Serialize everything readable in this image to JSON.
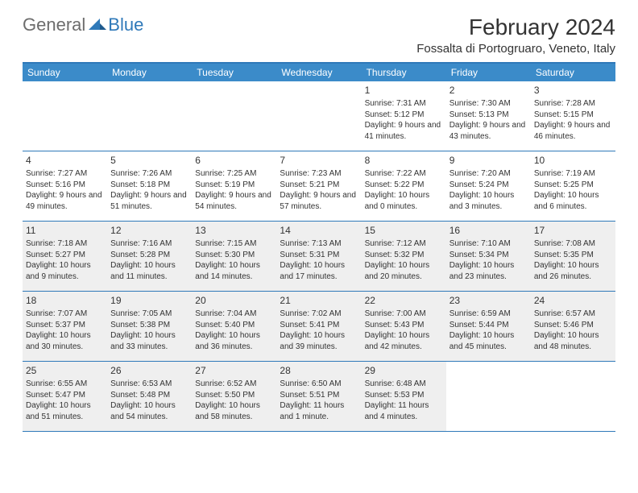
{
  "logo": {
    "general": "General",
    "blue": "Blue"
  },
  "title": "February 2024",
  "location": "Fossalta di Portogruaro, Veneto, Italy",
  "colors": {
    "header_bg": "#3b8bc9",
    "border": "#2f79b9",
    "shaded_bg": "#efefef",
    "text": "#333333",
    "logo_gray": "#6d6d6d",
    "logo_blue": "#2f79b9"
  },
  "day_names": [
    "Sunday",
    "Monday",
    "Tuesday",
    "Wednesday",
    "Thursday",
    "Friday",
    "Saturday"
  ],
  "weeks": [
    [
      {
        "day": "",
        "shaded": false,
        "lines": []
      },
      {
        "day": "",
        "shaded": false,
        "lines": []
      },
      {
        "day": "",
        "shaded": false,
        "lines": []
      },
      {
        "day": "",
        "shaded": false,
        "lines": []
      },
      {
        "day": "1",
        "shaded": false,
        "lines": [
          "Sunrise: 7:31 AM",
          "Sunset: 5:12 PM",
          "Daylight: 9 hours and 41 minutes."
        ]
      },
      {
        "day": "2",
        "shaded": false,
        "lines": [
          "Sunrise: 7:30 AM",
          "Sunset: 5:13 PM",
          "Daylight: 9 hours and 43 minutes."
        ]
      },
      {
        "day": "3",
        "shaded": false,
        "lines": [
          "Sunrise: 7:28 AM",
          "Sunset: 5:15 PM",
          "Daylight: 9 hours and 46 minutes."
        ]
      }
    ],
    [
      {
        "day": "4",
        "shaded": false,
        "lines": [
          "Sunrise: 7:27 AM",
          "Sunset: 5:16 PM",
          "Daylight: 9 hours and 49 minutes."
        ]
      },
      {
        "day": "5",
        "shaded": false,
        "lines": [
          "Sunrise: 7:26 AM",
          "Sunset: 5:18 PM",
          "Daylight: 9 hours and 51 minutes."
        ]
      },
      {
        "day": "6",
        "shaded": false,
        "lines": [
          "Sunrise: 7:25 AM",
          "Sunset: 5:19 PM",
          "Daylight: 9 hours and 54 minutes."
        ]
      },
      {
        "day": "7",
        "shaded": false,
        "lines": [
          "Sunrise: 7:23 AM",
          "Sunset: 5:21 PM",
          "Daylight: 9 hours and 57 minutes."
        ]
      },
      {
        "day": "8",
        "shaded": false,
        "lines": [
          "Sunrise: 7:22 AM",
          "Sunset: 5:22 PM",
          "Daylight: 10 hours and 0 minutes."
        ]
      },
      {
        "day": "9",
        "shaded": false,
        "lines": [
          "Sunrise: 7:20 AM",
          "Sunset: 5:24 PM",
          "Daylight: 10 hours and 3 minutes."
        ]
      },
      {
        "day": "10",
        "shaded": false,
        "lines": [
          "Sunrise: 7:19 AM",
          "Sunset: 5:25 PM",
          "Daylight: 10 hours and 6 minutes."
        ]
      }
    ],
    [
      {
        "day": "11",
        "shaded": true,
        "lines": [
          "Sunrise: 7:18 AM",
          "Sunset: 5:27 PM",
          "Daylight: 10 hours and 9 minutes."
        ]
      },
      {
        "day": "12",
        "shaded": true,
        "lines": [
          "Sunrise: 7:16 AM",
          "Sunset: 5:28 PM",
          "Daylight: 10 hours and 11 minutes."
        ]
      },
      {
        "day": "13",
        "shaded": true,
        "lines": [
          "Sunrise: 7:15 AM",
          "Sunset: 5:30 PM",
          "Daylight: 10 hours and 14 minutes."
        ]
      },
      {
        "day": "14",
        "shaded": true,
        "lines": [
          "Sunrise: 7:13 AM",
          "Sunset: 5:31 PM",
          "Daylight: 10 hours and 17 minutes."
        ]
      },
      {
        "day": "15",
        "shaded": true,
        "lines": [
          "Sunrise: 7:12 AM",
          "Sunset: 5:32 PM",
          "Daylight: 10 hours and 20 minutes."
        ]
      },
      {
        "day": "16",
        "shaded": true,
        "lines": [
          "Sunrise: 7:10 AM",
          "Sunset: 5:34 PM",
          "Daylight: 10 hours and 23 minutes."
        ]
      },
      {
        "day": "17",
        "shaded": true,
        "lines": [
          "Sunrise: 7:08 AM",
          "Sunset: 5:35 PM",
          "Daylight: 10 hours and 26 minutes."
        ]
      }
    ],
    [
      {
        "day": "18",
        "shaded": true,
        "lines": [
          "Sunrise: 7:07 AM",
          "Sunset: 5:37 PM",
          "Daylight: 10 hours and 30 minutes."
        ]
      },
      {
        "day": "19",
        "shaded": true,
        "lines": [
          "Sunrise: 7:05 AM",
          "Sunset: 5:38 PM",
          "Daylight: 10 hours and 33 minutes."
        ]
      },
      {
        "day": "20",
        "shaded": true,
        "lines": [
          "Sunrise: 7:04 AM",
          "Sunset: 5:40 PM",
          "Daylight: 10 hours and 36 minutes."
        ]
      },
      {
        "day": "21",
        "shaded": true,
        "lines": [
          "Sunrise: 7:02 AM",
          "Sunset: 5:41 PM",
          "Daylight: 10 hours and 39 minutes."
        ]
      },
      {
        "day": "22",
        "shaded": true,
        "lines": [
          "Sunrise: 7:00 AM",
          "Sunset: 5:43 PM",
          "Daylight: 10 hours and 42 minutes."
        ]
      },
      {
        "day": "23",
        "shaded": true,
        "lines": [
          "Sunrise: 6:59 AM",
          "Sunset: 5:44 PM",
          "Daylight: 10 hours and 45 minutes."
        ]
      },
      {
        "day": "24",
        "shaded": true,
        "lines": [
          "Sunrise: 6:57 AM",
          "Sunset: 5:46 PM",
          "Daylight: 10 hours and 48 minutes."
        ]
      }
    ],
    [
      {
        "day": "25",
        "shaded": true,
        "lines": [
          "Sunrise: 6:55 AM",
          "Sunset: 5:47 PM",
          "Daylight: 10 hours and 51 minutes."
        ]
      },
      {
        "day": "26",
        "shaded": true,
        "lines": [
          "Sunrise: 6:53 AM",
          "Sunset: 5:48 PM",
          "Daylight: 10 hours and 54 minutes."
        ]
      },
      {
        "day": "27",
        "shaded": true,
        "lines": [
          "Sunrise: 6:52 AM",
          "Sunset: 5:50 PM",
          "Daylight: 10 hours and 58 minutes."
        ]
      },
      {
        "day": "28",
        "shaded": true,
        "lines": [
          "Sunrise: 6:50 AM",
          "Sunset: 5:51 PM",
          "Daylight: 11 hours and 1 minute."
        ]
      },
      {
        "day": "29",
        "shaded": true,
        "lines": [
          "Sunrise: 6:48 AM",
          "Sunset: 5:53 PM",
          "Daylight: 11 hours and 4 minutes."
        ]
      },
      {
        "day": "",
        "shaded": false,
        "lines": []
      },
      {
        "day": "",
        "shaded": false,
        "lines": []
      }
    ]
  ]
}
